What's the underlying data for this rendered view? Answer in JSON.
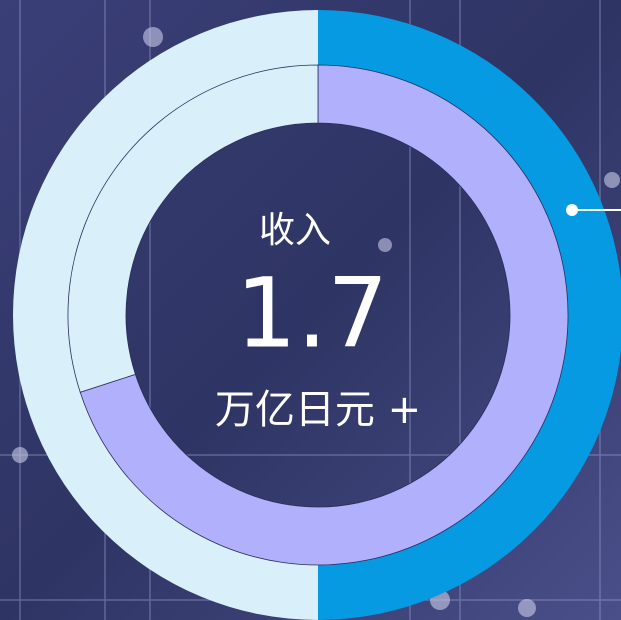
{
  "chart_data": {
    "type": "donut",
    "rings": [
      {
        "values": [
          50,
          50
        ],
        "colors": [
          "#069ae3",
          "#d9f0fb"
        ]
      },
      {
        "values": [
          70,
          30
        ],
        "colors": [
          "#b1b0fc",
          "#d9f0fb"
        ]
      }
    ],
    "center_label": "收入",
    "center_value": 1.7,
    "center_unit": "万亿日元 +"
  }
}
